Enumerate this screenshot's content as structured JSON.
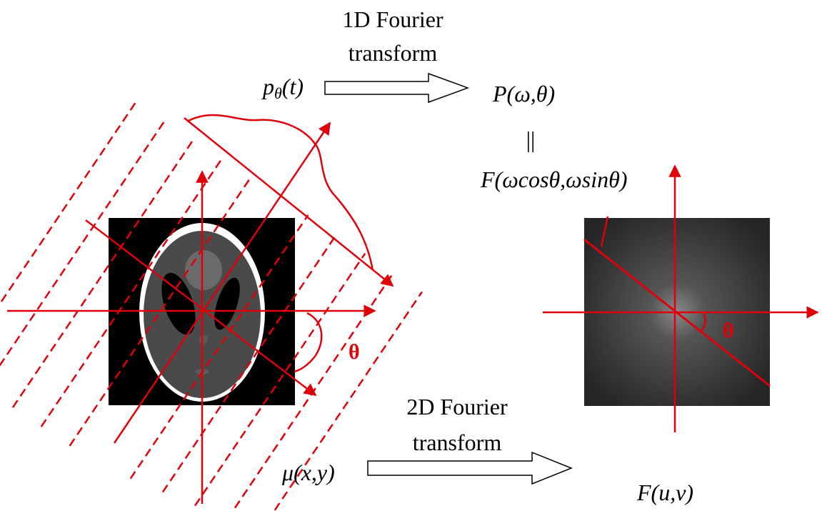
{
  "top_transform": {
    "label_lines": [
      "1D Fourier",
      "transform"
    ],
    "input": {
      "base": "p",
      "subscript": "θ",
      "argument": "(t)"
    },
    "output": "P(ω,θ)"
  },
  "equals": "||",
  "slice_label": "F(ωcosθ,ωsinθ)",
  "left_angle_label": "θ",
  "right_angle_label": "θ",
  "bottom_transform": {
    "label_lines": [
      "2D Fourier",
      "transform"
    ],
    "input": "μ(x,y)",
    "output": "F(u,v)"
  }
}
